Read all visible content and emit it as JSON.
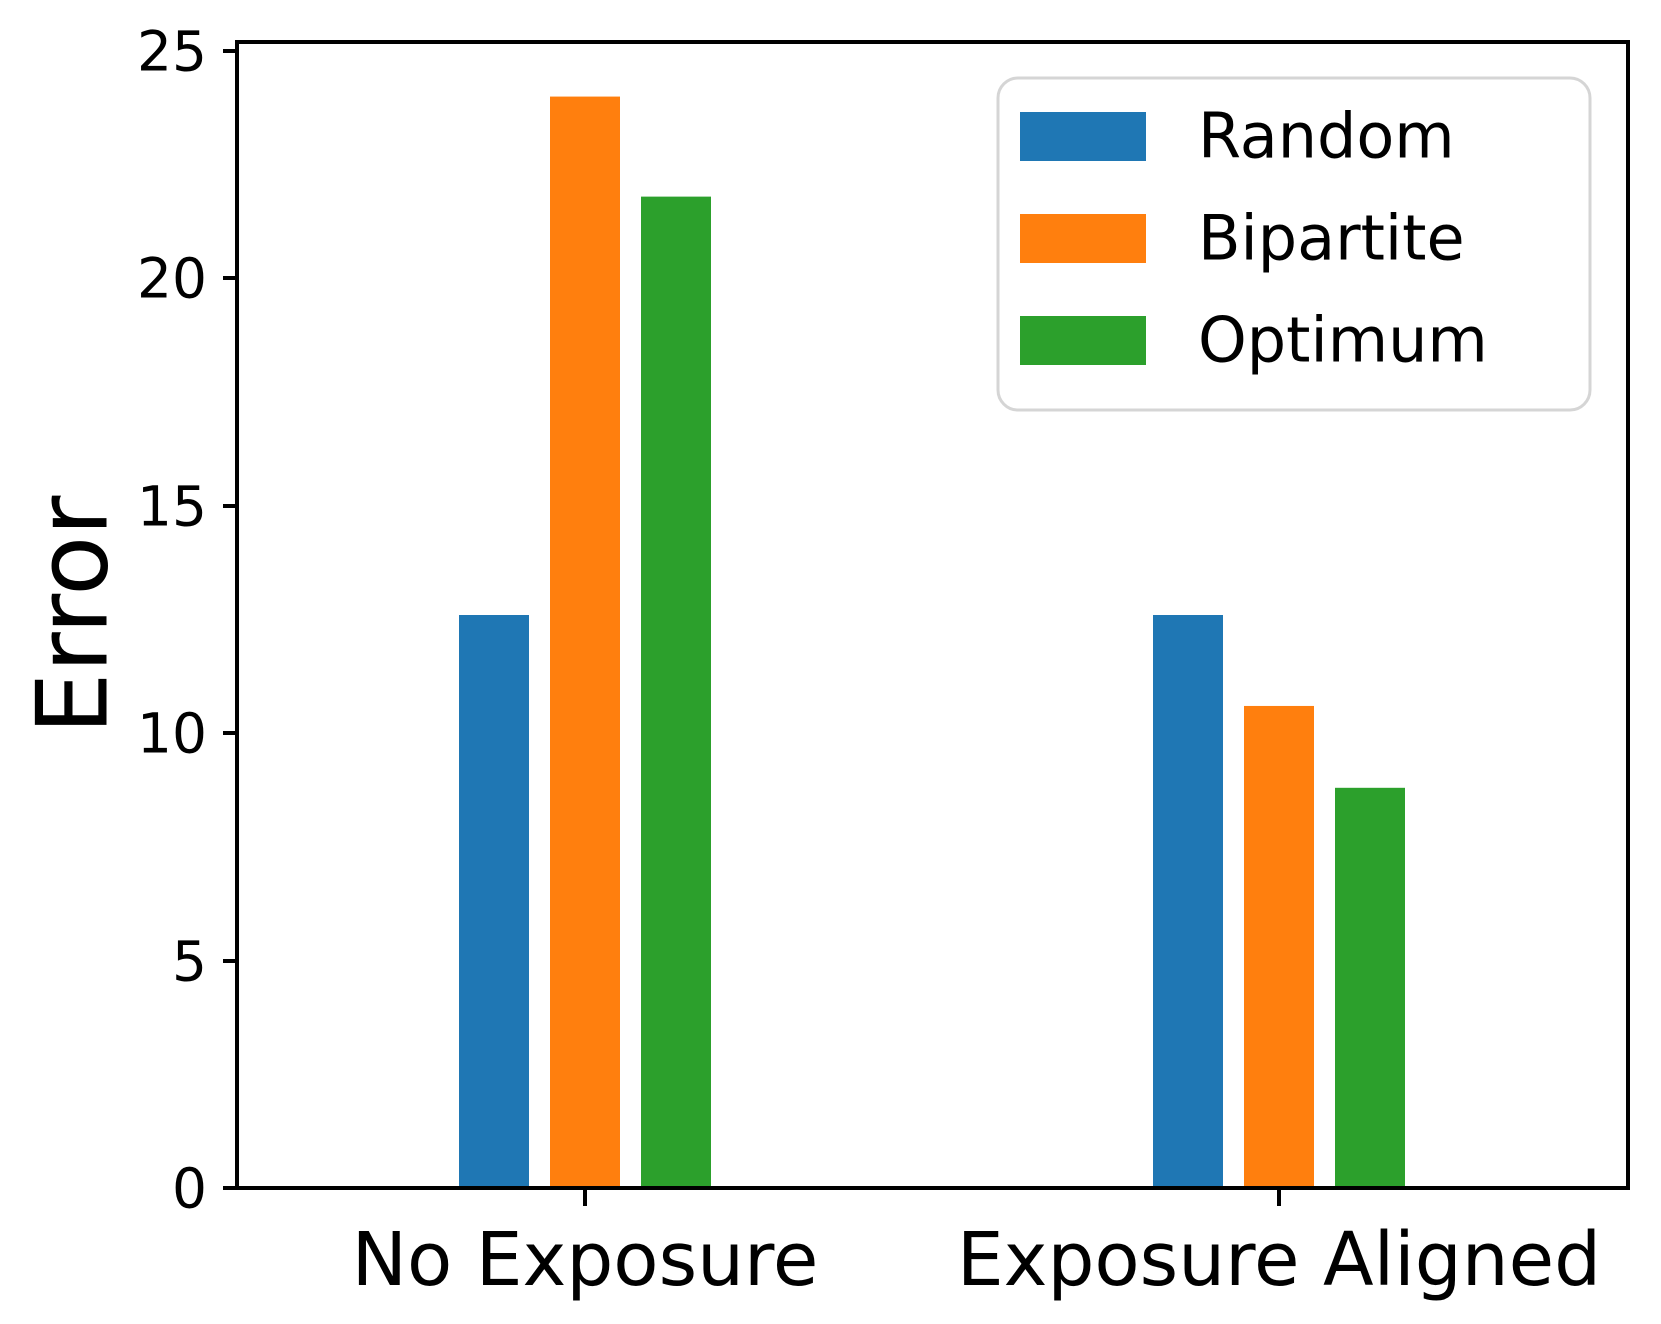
{
  "chart_data": {
    "type": "bar",
    "title": "",
    "xlabel": "",
    "ylabel": "Error",
    "categories": [
      "No Exposure",
      "Exposure Aligned"
    ],
    "series": [
      {
        "name": "Random",
        "color": "#1f77b4",
        "values": [
          12.6,
          12.6
        ]
      },
      {
        "name": "Bipartite",
        "color": "#ff7f0e",
        "values": [
          24.0,
          10.6
        ]
      },
      {
        "name": "Optimum",
        "color": "#2ca02c",
        "values": [
          21.8,
          8.8
        ]
      }
    ],
    "ylim": [
      0,
      25.2
    ],
    "yticks": [
      0,
      5,
      10,
      15,
      20,
      25
    ],
    "grid": false,
    "legend_position": "upper right",
    "axis_color": "#000000",
    "background_color": "#ffffff"
  }
}
